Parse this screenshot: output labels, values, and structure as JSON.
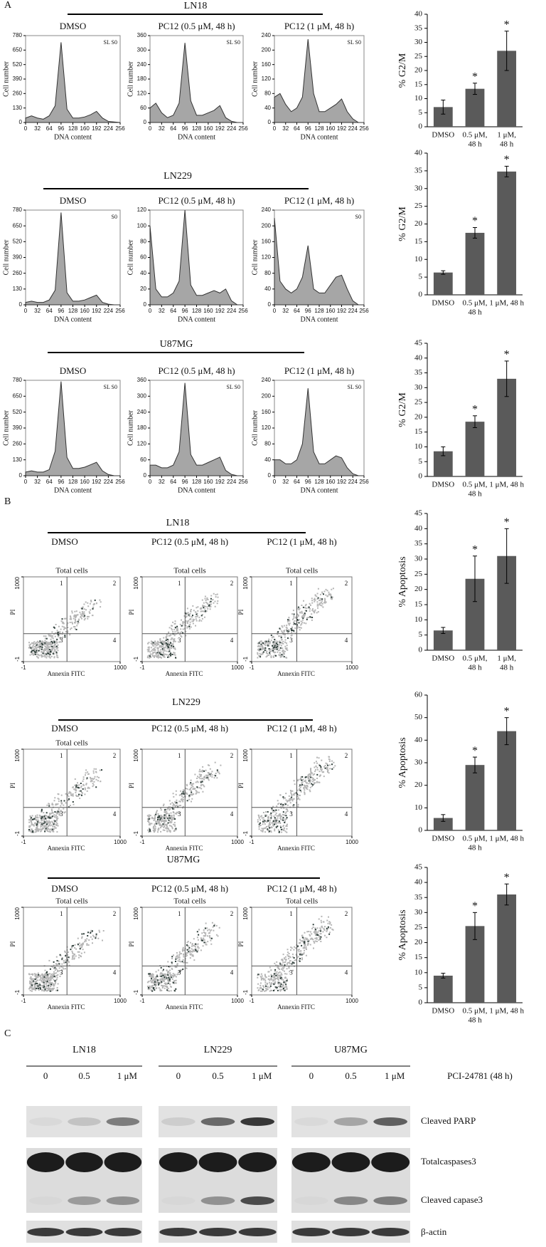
{
  "figure": {
    "panel_labels": [
      "A",
      "B",
      "C"
    ],
    "cell_cycle_lines": [
      "LN18",
      "LN229",
      "U87MG"
    ],
    "apoptosis_lines": [
      "LN18",
      "LN229",
      "U87MG"
    ],
    "western": {
      "cell_lines": [
        "LN18",
        "LN229",
        "U87MG"
      ],
      "doses": [
        [
          "0",
          "0.5",
          "1 μM"
        ],
        [
          "0",
          "0.5",
          "1 μM"
        ],
        [
          "0",
          "0.5",
          "1 μM"
        ]
      ],
      "treatment": "PCI-24781 (48 h)",
      "proteins": [
        "Cleaved PARP",
        "Totalcaspases3",
        "Cleaved capase3",
        "β-actin"
      ]
    }
  },
  "chart_data": [
    {
      "type": "area",
      "title": "DMSO",
      "x": [
        0,
        16,
        32,
        48,
        64,
        80,
        96,
        112,
        128,
        144,
        160,
        176,
        192,
        208,
        224,
        240,
        256
      ],
      "values": [
        40,
        60,
        40,
        30,
        60,
        150,
        720,
        120,
        40,
        40,
        50,
        70,
        100,
        40,
        10,
        5,
        0
      ],
      "xlim": [
        0,
        256
      ],
      "ylim": [
        0,
        780
      ],
      "xticks": [
        0,
        32,
        64,
        96,
        128,
        160,
        192,
        224,
        256
      ],
      "yticks": [
        0,
        130,
        260,
        390,
        520,
        650,
        780
      ],
      "xlabel": "DNA content",
      "ylabel": "Cell number",
      "annotation": "SL S0",
      "color": "#a6a6a6"
    },
    {
      "type": "area",
      "title": "PC12 (0.5 μM, 48 h)",
      "x": [
        0,
        16,
        32,
        48,
        64,
        80,
        96,
        112,
        128,
        144,
        160,
        176,
        192,
        208,
        224,
        240,
        256
      ],
      "values": [
        60,
        80,
        40,
        20,
        30,
        80,
        330,
        90,
        30,
        30,
        40,
        50,
        70,
        20,
        5,
        0,
        0
      ],
      "xlim": [
        0,
        256
      ],
      "ylim": [
        0,
        360
      ],
      "xticks": [
        0,
        32,
        64,
        96,
        128,
        160,
        192,
        224,
        256
      ],
      "yticks": [
        0,
        60,
        120,
        180,
        240,
        300,
        360
      ],
      "xlabel": "DNA content",
      "ylabel": "Cell number",
      "annotation": "SL S0",
      "color": "#a6a6a6"
    },
    {
      "type": "area",
      "title": "PC12 (1 μM, 48 h)",
      "x": [
        0,
        16,
        32,
        48,
        64,
        80,
        96,
        112,
        128,
        144,
        160,
        176,
        192,
        208,
        224,
        240,
        256
      ],
      "values": [
        70,
        80,
        50,
        30,
        40,
        70,
        230,
        80,
        30,
        30,
        40,
        50,
        65,
        30,
        10,
        0,
        0
      ],
      "xlim": [
        0,
        256
      ],
      "ylim": [
        0,
        240
      ],
      "xticks": [
        0,
        32,
        64,
        96,
        128,
        160,
        192,
        224,
        256
      ],
      "yticks": [
        0,
        40,
        80,
        120,
        160,
        200,
        240
      ],
      "xlabel": "DNA content",
      "ylabel": "Cell number",
      "annotation": "SL S0",
      "color": "#a6a6a6"
    },
    {
      "type": "area",
      "title": "DMSO",
      "x": [
        0,
        16,
        32,
        48,
        64,
        80,
        96,
        112,
        128,
        144,
        160,
        176,
        192,
        208,
        224,
        240,
        256
      ],
      "values": [
        20,
        30,
        20,
        20,
        40,
        120,
        760,
        100,
        30,
        30,
        40,
        60,
        80,
        20,
        5,
        0,
        0
      ],
      "xlim": [
        0,
        256
      ],
      "ylim": [
        0,
        780
      ],
      "xticks": [
        0,
        32,
        64,
        96,
        128,
        160,
        192,
        224,
        256
      ],
      "yticks": [
        0,
        130,
        260,
        390,
        520,
        650,
        780
      ],
      "xlabel": "DNA content",
      "ylabel": "Cell number",
      "annotation": "S0",
      "color": "#a6a6a6"
    },
    {
      "type": "area",
      "title": "PC12 (0.5 μM, 48 h)",
      "x": [
        0,
        16,
        32,
        48,
        64,
        80,
        96,
        112,
        128,
        144,
        160,
        176,
        192,
        208,
        224,
        240,
        256
      ],
      "values": [
        100,
        20,
        10,
        10,
        15,
        30,
        120,
        25,
        12,
        12,
        15,
        18,
        15,
        20,
        5,
        0,
        0
      ],
      "xlim": [
        0,
        256
      ],
      "ylim": [
        0,
        120
      ],
      "xticks": [
        0,
        32,
        64,
        96,
        128,
        160,
        192,
        224,
        256
      ],
      "yticks": [
        0,
        20,
        40,
        60,
        80,
        100,
        120
      ],
      "xlabel": "DNA content",
      "ylabel": "Cell number",
      "color": "#a6a6a6"
    },
    {
      "type": "area",
      "title": "PC12 (1 μM, 48 h)",
      "x": [
        0,
        16,
        32,
        48,
        64,
        80,
        96,
        112,
        128,
        144,
        160,
        176,
        192,
        208,
        224,
        240,
        256
      ],
      "values": [
        220,
        60,
        40,
        30,
        40,
        70,
        150,
        40,
        30,
        30,
        50,
        70,
        75,
        40,
        10,
        0,
        0
      ],
      "xlim": [
        0,
        256
      ],
      "ylim": [
        0,
        240
      ],
      "xticks": [
        0,
        32,
        64,
        96,
        128,
        160,
        192,
        224,
        256
      ],
      "yticks": [
        0,
        40,
        80,
        120,
        160,
        200,
        240
      ],
      "xlabel": "DNA content",
      "ylabel": "Cell number",
      "annotation": "S0",
      "color": "#a6a6a6"
    },
    {
      "type": "area",
      "title": "DMSO",
      "x": [
        0,
        16,
        32,
        48,
        64,
        80,
        96,
        112,
        128,
        144,
        160,
        176,
        192,
        208,
        224,
        240,
        256
      ],
      "values": [
        30,
        40,
        30,
        30,
        50,
        200,
        770,
        150,
        60,
        60,
        70,
        90,
        110,
        40,
        10,
        0,
        0
      ],
      "xlim": [
        0,
        256
      ],
      "ylim": [
        0,
        780
      ],
      "xticks": [
        0,
        32,
        64,
        96,
        128,
        160,
        192,
        224,
        256
      ],
      "yticks": [
        0,
        130,
        260,
        390,
        520,
        650,
        780
      ],
      "xlabel": "DNA content",
      "ylabel": "Cell number",
      "annotation": "SL S0",
      "color": "#a6a6a6"
    },
    {
      "type": "area",
      "title": "PC12 (0.5 μM, 48 h)",
      "x": [
        0,
        16,
        32,
        48,
        64,
        80,
        96,
        112,
        128,
        144,
        160,
        176,
        192,
        208,
        224,
        240,
        256
      ],
      "values": [
        40,
        40,
        30,
        30,
        40,
        90,
        350,
        80,
        40,
        40,
        50,
        60,
        70,
        20,
        5,
        0,
        0
      ],
      "xlim": [
        0,
        256
      ],
      "ylim": [
        0,
        360
      ],
      "xticks": [
        0,
        32,
        64,
        96,
        128,
        160,
        192,
        224,
        256
      ],
      "yticks": [
        0,
        60,
        120,
        180,
        240,
        300,
        360
      ],
      "xlabel": "DNA content",
      "ylabel": "Cell number",
      "annotation": "SL S0",
      "color": "#a6a6a6"
    },
    {
      "type": "area",
      "title": "PC12 (1 μM, 48 h)",
      "x": [
        0,
        16,
        32,
        48,
        64,
        80,
        96,
        112,
        128,
        144,
        160,
        176,
        192,
        208,
        224,
        240,
        256
      ],
      "values": [
        40,
        40,
        30,
        30,
        40,
        80,
        220,
        60,
        30,
        30,
        40,
        50,
        45,
        20,
        5,
        0,
        0
      ],
      "xlim": [
        0,
        256
      ],
      "ylim": [
        0,
        240
      ],
      "xticks": [
        0,
        32,
        64,
        96,
        128,
        160,
        192,
        224,
        256
      ],
      "yticks": [
        0,
        40,
        80,
        120,
        160,
        200,
        240
      ],
      "xlabel": "DNA content",
      "ylabel": "Cell number",
      "annotation": "SL S0",
      "color": "#a6a6a6"
    },
    {
      "type": "bar",
      "categories": [
        [
          "DMSO"
        ],
        [
          "0.5 μM,",
          "48 h"
        ],
        [
          "1 μM,",
          "48 h"
        ]
      ],
      "values": [
        7,
        13.5,
        27
      ],
      "errors": [
        2.5,
        2,
        7
      ],
      "annotations": [
        null,
        "*",
        "*"
      ],
      "ylabel": "% G2/M",
      "ylim": [
        0,
        40
      ],
      "yticks": [
        0,
        5,
        10,
        15,
        20,
        25,
        30,
        35,
        40
      ],
      "color": "#5a5a5a"
    },
    {
      "type": "bar",
      "categories": [
        [
          "DMSO"
        ],
        [
          "0.5 μM,",
          "48 h"
        ],
        [
          "1 μM, 48 h"
        ]
      ],
      "values": [
        6.3,
        17.5,
        34.8
      ],
      "errors": [
        0.5,
        1.5,
        1.5
      ],
      "annotations": [
        null,
        "*",
        "*"
      ],
      "ylabel": "% G2/M",
      "ylim": [
        0,
        40
      ],
      "yticks": [
        0,
        5,
        10,
        15,
        20,
        25,
        30,
        35,
        40
      ],
      "color": "#5a5a5a"
    },
    {
      "type": "bar",
      "categories": [
        [
          "DMSO"
        ],
        [
          "0.5 μM,",
          "48 h"
        ],
        [
          "1 μM, 48 h"
        ]
      ],
      "values": [
        8.5,
        18.5,
        33
      ],
      "errors": [
        1.5,
        2,
        6
      ],
      "annotations": [
        null,
        "*",
        "*"
      ],
      "ylabel": "% G2/M",
      "ylim": [
        0,
        45
      ],
      "yticks": [
        0,
        5,
        10,
        15,
        20,
        25,
        30,
        35,
        40,
        45
      ],
      "color": "#5a5a5a"
    },
    {
      "type": "quadrant",
      "title": "DMSO",
      "subtitle": "Total cells",
      "xlabel": "Annexin FITC",
      "ylabel": "PI",
      "xlim": [
        -1,
        1000
      ],
      "ylim": [
        -1,
        1000
      ],
      "xticks": [
        -1,
        1000
      ],
      "yticks": [
        -1,
        1000
      ],
      "quadrants": [
        "1",
        "2",
        "3",
        "4"
      ]
    },
    {
      "type": "quadrant",
      "title": "PC12 (0.5 μM, 48 h)",
      "subtitle": "Total cells",
      "xlabel": "Annexin FITC",
      "ylabel": "PI",
      "xlim": [
        -1,
        1000
      ],
      "ylim": [
        -1,
        1000
      ],
      "xticks": [
        -1,
        1000
      ],
      "yticks": [
        -1,
        1000
      ],
      "quadrants": [
        "1",
        "2",
        "3",
        "4"
      ]
    },
    {
      "type": "quadrant",
      "title": "PC12 (1 μM, 48 h)",
      "subtitle": "Total cells",
      "xlabel": "Annexin FITC",
      "ylabel": "PI",
      "xlim": [
        -1,
        1000
      ],
      "ylim": [
        -1,
        1000
      ],
      "xticks": [
        -1,
        1000
      ],
      "yticks": [
        -1,
        1000
      ],
      "quadrants": [
        "1",
        "2",
        "3",
        "4"
      ]
    },
    {
      "type": "quadrant",
      "title": "DMSO",
      "subtitle": "Total cells",
      "xlabel": "Annexin FITC",
      "ylabel": "PI",
      "xlim": [
        -1,
        1000
      ],
      "ylim": [
        -1,
        1000
      ],
      "xticks": [
        -1,
        1000
      ],
      "yticks": [
        -1,
        1000
      ],
      "quadrants": [
        "1",
        "2",
        "3",
        "4"
      ]
    },
    {
      "type": "quadrant",
      "title": "PC12 (0.5 μM, 48 h)",
      "xlabel": "Annexin FITC",
      "ylabel": "PI",
      "xlim": [
        -1,
        1000
      ],
      "ylim": [
        -1,
        1000
      ],
      "xticks": [
        -1,
        1000
      ],
      "yticks": [
        -1,
        1000
      ],
      "quadrants": [
        "1",
        "2",
        "3",
        "4"
      ]
    },
    {
      "type": "quadrant",
      "title": "PC12 (1 μM, 48 h)",
      "xlabel": "Annexin FITC",
      "ylabel": "PI",
      "xlim": [
        -1,
        1000
      ],
      "ylim": [
        -1,
        1000
      ],
      "xticks": [
        -1,
        1000
      ],
      "yticks": [
        -1,
        1000
      ],
      "quadrants": [
        "1",
        "2",
        "3",
        "4"
      ]
    },
    {
      "type": "quadrant",
      "title": "DMSO",
      "subtitle": "Total cells",
      "xlabel": "Annexin FITC",
      "ylabel": "PI",
      "xlim": [
        -1,
        1000
      ],
      "ylim": [
        -1,
        1000
      ],
      "xticks": [
        -1,
        1000
      ],
      "yticks": [
        -1,
        1000
      ],
      "quadrants": [
        "1",
        "2",
        "3",
        "4"
      ]
    },
    {
      "type": "quadrant",
      "title": "PC12 (0.5 μM, 48 h)",
      "subtitle": "Total cells",
      "xlabel": "Annexin FITC",
      "ylabel": "PI",
      "xlim": [
        -1,
        1000
      ],
      "ylim": [
        -1,
        1000
      ],
      "xticks": [
        -1,
        1000
      ],
      "yticks": [
        -1,
        1000
      ],
      "quadrants": [
        "1",
        "2",
        "3",
        "4"
      ]
    },
    {
      "type": "quadrant",
      "title": "PC12 (1 μM, 48 h)",
      "subtitle": "Total cells",
      "xlabel": "Annexin FITC",
      "ylabel": "PI",
      "xlim": [
        -1,
        1000
      ],
      "ylim": [
        -1,
        1000
      ],
      "xticks": [
        -1,
        1000
      ],
      "yticks": [
        -1,
        1000
      ],
      "quadrants": [
        "1",
        "2",
        "3",
        "4"
      ]
    },
    {
      "type": "bar",
      "categories": [
        [
          "DMSO"
        ],
        [
          "0.5 μM,",
          "48 h"
        ],
        [
          "1 μM,",
          "48 h"
        ]
      ],
      "values": [
        6.5,
        23.5,
        31
      ],
      "errors": [
        1,
        7.5,
        9
      ],
      "annotations": [
        null,
        "*",
        "*"
      ],
      "ylabel": "% Apoptosis",
      "ylim": [
        0,
        45
      ],
      "yticks": [
        0,
        5,
        10,
        15,
        20,
        25,
        30,
        35,
        40,
        45
      ],
      "color": "#5a5a5a"
    },
    {
      "type": "bar",
      "categories": [
        [
          "DMSO"
        ],
        [
          "0.5 μM,",
          "48 h"
        ],
        [
          "1 μM, 48 h"
        ]
      ],
      "values": [
        5.5,
        29,
        44
      ],
      "errors": [
        1.5,
        3.5,
        6
      ],
      "annotations": [
        null,
        "*",
        "*"
      ],
      "ylabel": "% Apoptosis",
      "ylim": [
        0,
        60
      ],
      "yticks": [
        0,
        10,
        20,
        30,
        40,
        50,
        60
      ],
      "color": "#5a5a5a"
    },
    {
      "type": "bar",
      "categories": [
        [
          "DMSO"
        ],
        [
          "0.5 μM,",
          "48 h"
        ],
        [
          "1 μM, 48 h"
        ]
      ],
      "values": [
        9,
        25.5,
        36
      ],
      "errors": [
        0.8,
        4.5,
        3.5
      ],
      "annotations": [
        null,
        "*",
        "*"
      ],
      "ylabel": "% Apoptosis",
      "ylim": [
        0,
        45
      ],
      "yticks": [
        0,
        5,
        10,
        15,
        20,
        25,
        30,
        35,
        40,
        45
      ],
      "color": "#5a5a5a"
    }
  ]
}
